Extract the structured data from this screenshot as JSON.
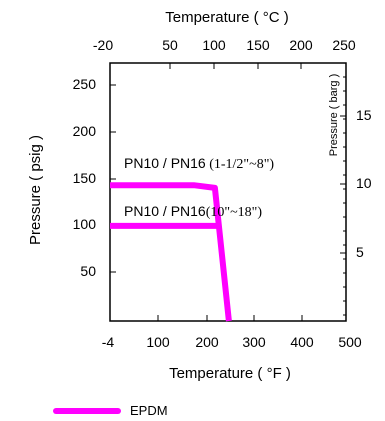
{
  "chart_data": {
    "type": "line",
    "x_bottom": {
      "label": "Temperature ( °F )",
      "range": [
        -4,
        500
      ],
      "ticks": [
        "-4",
        "100",
        "200",
        "300",
        "400",
        "500"
      ]
    },
    "x_top": {
      "label": "Temperature ( °C )",
      "range": [
        -20,
        260
      ],
      "ticks": [
        "-20",
        "50",
        "100",
        "150",
        "200",
        "250"
      ]
    },
    "y_left": {
      "label": "Pressure ( psig )",
      "range": [
        0,
        285
      ],
      "ticks": [
        "50",
        "100",
        "150",
        "200",
        "250"
      ]
    },
    "y_right": {
      "label": "Pressure ( barg )",
      "ticks": [
        "5",
        "10",
        "15"
      ]
    },
    "series": [
      {
        "name": "EPDM",
        "color": "#ff00ff",
        "lines": [
          {
            "x": [
              -4,
              175,
              220,
              250
            ],
            "y": [
              150,
              150,
              147,
              0
            ]
          },
          {
            "x": [
              -4,
              225
            ],
            "y": [
              105,
              105
            ]
          }
        ]
      }
    ],
    "annotations": [
      {
        "label_a": "PN10 / PN16",
        "label_b": " (1-1/2\"~8\")"
      },
      {
        "label_a": "PN10 / PN16",
        "label_b": "(10\"~18\")"
      }
    ],
    "legend": {
      "position": "bottom-left",
      "label": "EPDM"
    }
  }
}
